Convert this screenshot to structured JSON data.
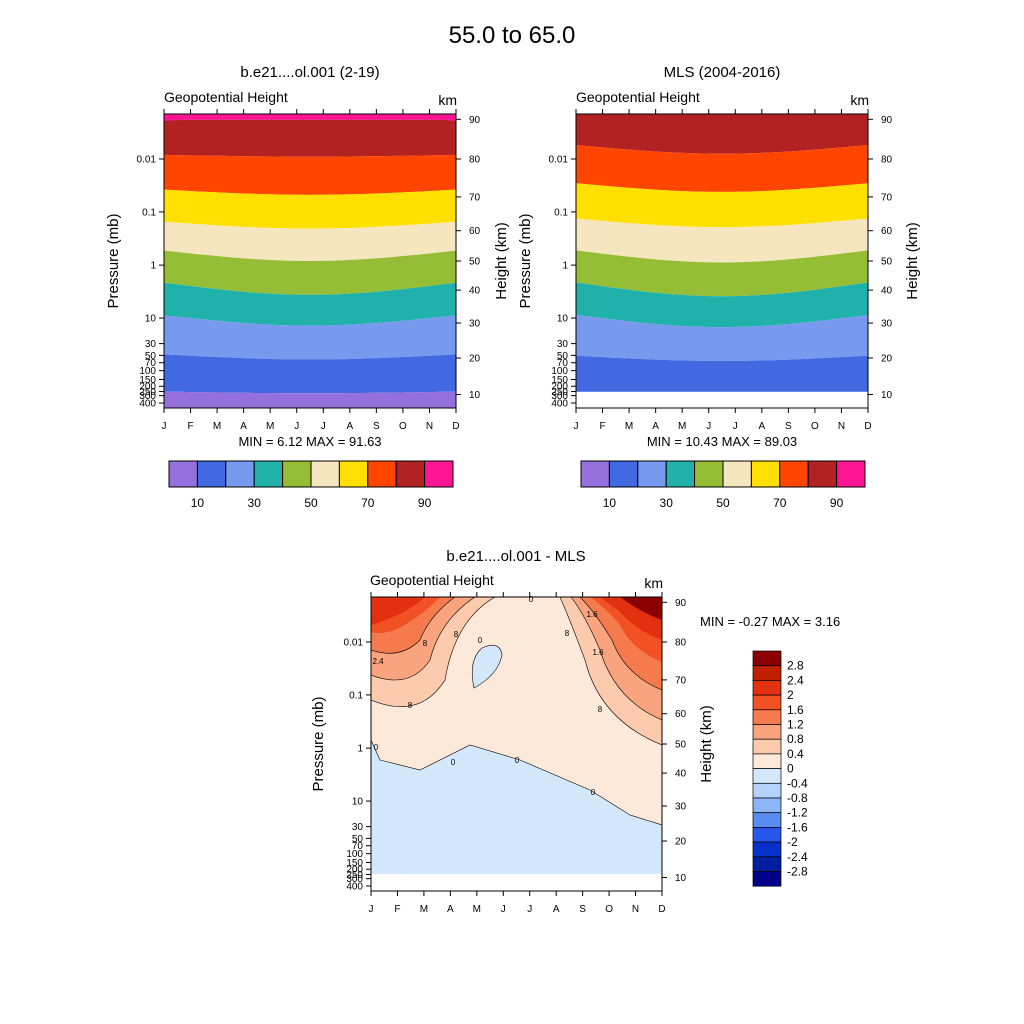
{
  "figure": {
    "title": "55.0 to  65.0"
  },
  "colors": {
    "geopotential": [
      "#9370db",
      "#4169e1",
      "#7799ee",
      "#20b2aa",
      "#95be36",
      "#f5e6c0",
      "#ffe000",
      "#ff4500",
      "#b22222",
      "#ff1493"
    ],
    "difference_positive": [
      "#fde9d9",
      "#fccaad",
      "#f9a47e",
      "#f57a4e",
      "#f25223",
      "#e33010",
      "#c02000",
      "#8b0000"
    ],
    "difference_zero_below": "#d4e8fc"
  },
  "chart_data": [
    {
      "type": "heatmap",
      "panel": "left",
      "title": "b.e21....ol.001 (2-19)",
      "subtitle": "Geopotential Height",
      "units": "km",
      "ylabel": "Pressure (mb)",
      "y2label": "Height (km)",
      "x_categories": [
        "J",
        "F",
        "M",
        "A",
        "M",
        "J",
        "J",
        "A",
        "S",
        "O",
        "N",
        "D"
      ],
      "pressure_ticks": [
        "0.01",
        "0.1",
        "1",
        "10",
        "30",
        "50",
        "70",
        "100",
        "150",
        "200",
        "250",
        "300",
        "400"
      ],
      "height_ticks": [
        "10",
        "20",
        "30",
        "40",
        "50",
        "60",
        "70",
        "80",
        "90"
      ],
      "min_max_text": "MIN =   6.12  MAX =  91.63",
      "min": 6.12,
      "max": 91.63,
      "colorbar": {
        "levels": [
          10,
          20,
          30,
          40,
          50,
          60,
          70,
          80,
          90
        ],
        "labels": [
          "10",
          "30",
          "50",
          "70",
          "90"
        ]
      }
    },
    {
      "type": "heatmap",
      "panel": "right",
      "title": "MLS (2004-2016)",
      "subtitle": "Geopotential Height",
      "units": "km",
      "ylabel": "Pressure (mb)",
      "y2label": "Height (km)",
      "x_categories": [
        "J",
        "F",
        "M",
        "A",
        "M",
        "J",
        "J",
        "A",
        "S",
        "O",
        "N",
        "D"
      ],
      "pressure_ticks": [
        "0.01",
        "0.1",
        "1",
        "10",
        "30",
        "50",
        "70",
        "100",
        "150",
        "200",
        "250",
        "300",
        "400"
      ],
      "height_ticks": [
        "10",
        "20",
        "30",
        "40",
        "50",
        "60",
        "70",
        "80",
        "90"
      ],
      "min_max_text": "MIN =  10.43  MAX =  89.03",
      "min": 10.43,
      "max": 89.03,
      "colorbar": {
        "levels": [
          10,
          20,
          30,
          40,
          50,
          60,
          70,
          80,
          90
        ],
        "labels": [
          "10",
          "30",
          "50",
          "70",
          "90"
        ]
      }
    },
    {
      "type": "heatmap",
      "panel": "difference",
      "title": "b.e21....ol.001 - MLS",
      "subtitle": "Geopotential Height",
      "units": "km",
      "ylabel": "Pressure (mb)",
      "y2label": "Height (km)",
      "x_categories": [
        "J",
        "F",
        "M",
        "A",
        "M",
        "J",
        "J",
        "A",
        "S",
        "O",
        "N",
        "D"
      ],
      "pressure_ticks": [
        "0.01",
        "0.1",
        "1",
        "10",
        "30",
        "50",
        "70",
        "100",
        "150",
        "200",
        "250",
        "300",
        "400"
      ],
      "height_ticks": [
        "10",
        "20",
        "30",
        "40",
        "50",
        "60",
        "70",
        "80",
        "90"
      ],
      "min_max_text": "MIN =  -0.27  MAX =   3.16",
      "min": -0.27,
      "max": 3.16,
      "contour_labels": [
        "0",
        "0",
        "0",
        "0",
        "0",
        "0",
        "8",
        "8",
        "8",
        "8",
        "8",
        "1.6",
        "1.6",
        "2.4"
      ],
      "colorbar": {
        "levels": [
          2.8,
          2.4,
          2,
          1.6,
          1.2,
          0.8,
          0.4,
          0,
          -0.4,
          -0.8,
          -1.2,
          -1.6,
          -2,
          -2.4,
          -2.8
        ],
        "labels": [
          "2.8",
          "2.4",
          "2",
          "1.6",
          "1.2",
          "0.8",
          "0.4",
          "0",
          "-0.4",
          "-0.8",
          "-1.2",
          "-1.6",
          "-2",
          "-2.4",
          "-2.8"
        ],
        "colors": [
          "#8b0000",
          "#c02000",
          "#e33010",
          "#f25223",
          "#f57a4e",
          "#f9a47e",
          "#fccaad",
          "#fde9d9",
          "#d4e8fc",
          "#b4d2fa",
          "#8cb4f6",
          "#5a8cf0",
          "#2855eb",
          "#0a30cc",
          "#001fa0",
          "#00008b"
        ]
      }
    }
  ]
}
